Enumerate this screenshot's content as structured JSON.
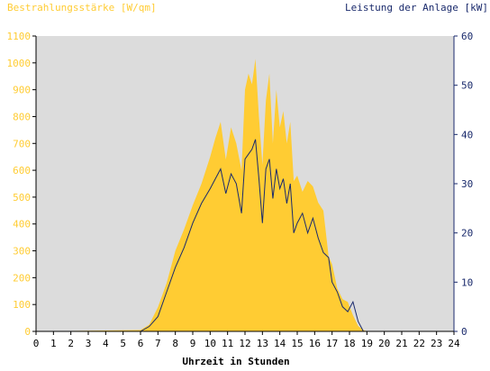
{
  "chart_data": {
    "type": "area",
    "left_axis_label": "Bestrahlungsstärke [W/qm]",
    "right_axis_label": "Leistung der Anlage [kW]",
    "xlabel": "Uhrzeit in Stunden",
    "x_ticks": [
      "0",
      "1",
      "2",
      "3",
      "4",
      "5",
      "6",
      "7",
      "8",
      "9",
      "10",
      "11",
      "12",
      "13",
      "14",
      "15",
      "16",
      "17",
      "18",
      "19",
      "20",
      "21",
      "22",
      "23",
      "24"
    ],
    "left_ticks": [
      "0",
      "100",
      "200",
      "300",
      "400",
      "500",
      "600",
      "700",
      "800",
      "900",
      "1000",
      "1100"
    ],
    "right_ticks": [
      "0",
      "10",
      "20",
      "30",
      "40",
      "50",
      "60"
    ],
    "xlim": [
      0,
      24
    ],
    "ylim_left": [
      0,
      1100
    ],
    "ylim_right": [
      0,
      60
    ],
    "series": [
      {
        "name": "Bestrahlungsstärke [W/qm]",
        "axis": "left",
        "x": [
          0,
          6.0,
          6.5,
          7.0,
          7.5,
          8.0,
          8.5,
          9.0,
          9.5,
          10.0,
          10.3,
          10.6,
          10.9,
          11.2,
          11.5,
          11.8,
          12.0,
          12.2,
          12.4,
          12.6,
          12.8,
          13.0,
          13.2,
          13.4,
          13.6,
          13.8,
          14.0,
          14.2,
          14.4,
          14.6,
          14.8,
          15.0,
          15.3,
          15.6,
          15.9,
          16.2,
          16.5,
          16.8,
          17.0,
          17.3,
          17.6,
          17.9,
          18.2,
          18.5,
          18.8,
          19.0,
          24
        ],
        "y": [
          0,
          5,
          25,
          90,
          180,
          300,
          380,
          470,
          550,
          650,
          720,
          780,
          640,
          760,
          700,
          600,
          900,
          960,
          920,
          1015,
          800,
          620,
          860,
          960,
          700,
          900,
          760,
          820,
          700,
          780,
          560,
          580,
          520,
          560,
          540,
          480,
          450,
          280,
          250,
          160,
          120,
          110,
          60,
          20,
          5,
          0,
          0
        ]
      },
      {
        "name": "Leistung der Anlage [kW]",
        "axis": "right",
        "x": [
          0,
          6.0,
          6.5,
          7.0,
          7.5,
          8.0,
          8.5,
          9.0,
          9.5,
          10.0,
          10.3,
          10.6,
          10.9,
          11.2,
          11.5,
          11.8,
          12.0,
          12.2,
          12.4,
          12.6,
          12.8,
          13.0,
          13.2,
          13.4,
          13.6,
          13.8,
          14.0,
          14.2,
          14.4,
          14.6,
          14.8,
          15.0,
          15.3,
          15.6,
          15.9,
          16.2,
          16.5,
          16.8,
          17.0,
          17.3,
          17.6,
          17.9,
          18.2,
          18.5,
          18.8,
          19.0,
          24
        ],
        "y": [
          0,
          0,
          1,
          3,
          8,
          13,
          17,
          22,
          26,
          29,
          31,
          33,
          28,
          32,
          30,
          24,
          35,
          36,
          37,
          39,
          31,
          22,
          33,
          35,
          27,
          33,
          29,
          31,
          26,
          30,
          20,
          22,
          24,
          20,
          23,
          19,
          16,
          15,
          10,
          8,
          5,
          4,
          6,
          2,
          0,
          0,
          0
        ]
      }
    ],
    "grid": false,
    "colors": {
      "plot_bg": "#dcdcdc",
      "irradiance_fill": "#ffcc33",
      "power_line": "#1a2a6c",
      "left_axis_text": "#ffcc33",
      "right_axis_text": "#1a2a6c",
      "axis_line": "#000000"
    }
  }
}
